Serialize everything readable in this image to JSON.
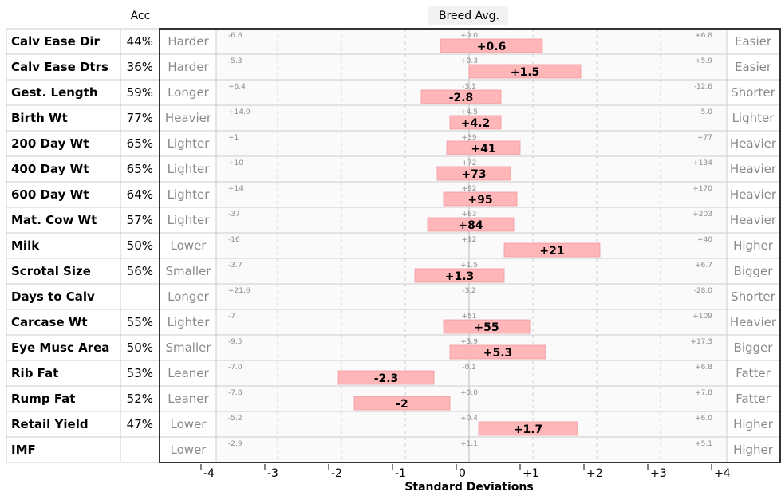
{
  "header": {
    "acc_label": "Acc",
    "breed_avg_label": "Breed Avg."
  },
  "chart_data": {
    "type": "bar",
    "xlabel": "Standard Deviations",
    "xlim": [
      -4,
      4
    ],
    "xticks": [
      "-4",
      "-3",
      "-2",
      "-1",
      "0",
      "+1",
      "+2",
      "+3",
      "+4"
    ],
    "rows": [
      {
        "trait": "Calv Ease Dir",
        "acc": "44%",
        "left": "Harder",
        "right": "Easier",
        "min_label": "-6.8",
        "avg_label": "+0.0",
        "max_label": "+6.8",
        "value_label": "+0.6",
        "low": -0.45,
        "high": 1.15
      },
      {
        "trait": "Calv Ease Dtrs",
        "acc": "36%",
        "left": "Harder",
        "right": "Easier",
        "min_label": "-5.3",
        "avg_label": "+0.3",
        "max_label": "+5.9",
        "value_label": "+1.5",
        "low": 0.0,
        "high": 1.75
      },
      {
        "trait": "Gest. Length",
        "acc": "59%",
        "left": "Longer",
        "right": "Shorter",
        "min_label": "+6.4",
        "avg_label": "-3.1",
        "max_label": "-12.6",
        "value_label": "-2.8",
        "low": -0.75,
        "high": 0.5
      },
      {
        "trait": "Birth Wt",
        "acc": "77%",
        "left": "Heavier",
        "right": "Lighter",
        "min_label": "+14.0",
        "avg_label": "+4.5",
        "max_label": "-5.0",
        "value_label": "+4.2",
        "low": -0.3,
        "high": 0.5
      },
      {
        "trait": "200 Day Wt",
        "acc": "65%",
        "left": "Lighter",
        "right": "Heavier",
        "min_label": "+1",
        "avg_label": "+39",
        "max_label": "+77",
        "value_label": "+41",
        "low": -0.35,
        "high": 0.8
      },
      {
        "trait": "400 Day Wt",
        "acc": "65%",
        "left": "Lighter",
        "right": "Heavier",
        "min_label": "+10",
        "avg_label": "+72",
        "max_label": "+134",
        "value_label": "+73",
        "low": -0.5,
        "high": 0.65
      },
      {
        "trait": "600 Day Wt",
        "acc": "64%",
        "left": "Lighter",
        "right": "Heavier",
        "min_label": "+14",
        "avg_label": "+92",
        "max_label": "+170",
        "value_label": "+95",
        "low": -0.4,
        "high": 0.75
      },
      {
        "trait": "Mat. Cow Wt",
        "acc": "57%",
        "left": "Lighter",
        "right": "Heavier",
        "min_label": "-37",
        "avg_label": "+83",
        "max_label": "+203",
        "value_label": "+84",
        "low": -0.65,
        "high": 0.7
      },
      {
        "trait": "Milk",
        "acc": "50%",
        "left": "Lower",
        "right": "Higher",
        "min_label": "-16",
        "avg_label": "+12",
        "max_label": "+40",
        "value_label": "+21",
        "low": 0.55,
        "high": 2.05
      },
      {
        "trait": "Scrotal Size",
        "acc": "56%",
        "left": "Smaller",
        "right": "Bigger",
        "min_label": "-3.7",
        "avg_label": "+1.5",
        "max_label": "+6.7",
        "value_label": "+1.3",
        "low": -0.85,
        "high": 0.55
      },
      {
        "trait": "Days to Calv",
        "acc": "",
        "left": "Longer",
        "right": "Shorter",
        "min_label": "+21.6",
        "avg_label": "-3.2",
        "max_label": "-28.0",
        "value_label": "",
        "low": null,
        "high": null
      },
      {
        "trait": "Carcase Wt",
        "acc": "55%",
        "left": "Lighter",
        "right": "Heavier",
        "min_label": "-7",
        "avg_label": "+51",
        "max_label": "+109",
        "value_label": "+55",
        "low": -0.4,
        "high": 0.95
      },
      {
        "trait": "Eye Musc Area",
        "acc": "50%",
        "left": "Smaller",
        "right": "Bigger",
        "min_label": "-9.5",
        "avg_label": "+3.9",
        "max_label": "+17.3",
        "value_label": "+5.3",
        "low": -0.3,
        "high": 1.2
      },
      {
        "trait": "Rib Fat",
        "acc": "53%",
        "left": "Leaner",
        "right": "Fatter",
        "min_label": "-7.0",
        "avg_label": "-0.1",
        "max_label": "+6.8",
        "value_label": "-2.3",
        "low": -2.05,
        "high": -0.55
      },
      {
        "trait": "Rump Fat",
        "acc": "52%",
        "left": "Leaner",
        "right": "Fatter",
        "min_label": "-7.8",
        "avg_label": "+0.0",
        "max_label": "+7.8",
        "value_label": "-2",
        "low": -1.8,
        "high": -0.3
      },
      {
        "trait": "Retail Yield",
        "acc": "47%",
        "left": "Lower",
        "right": "Higher",
        "min_label": "-5.2",
        "avg_label": "+0.4",
        "max_label": "+6.0",
        "value_label": "+1.7",
        "low": 0.15,
        "high": 1.7
      },
      {
        "trait": "IMF",
        "acc": "",
        "left": "Lower",
        "right": "Higher",
        "min_label": "-2.9",
        "avg_label": "+1.1",
        "max_label": "+5.1",
        "value_label": "",
        "low": null,
        "high": null
      }
    ],
    "grid": true,
    "colors": {
      "bar": "#ffb6b9",
      "bar_edge": "#f19aa0",
      "grid": "#d0d0d0",
      "border": "#333333"
    }
  }
}
